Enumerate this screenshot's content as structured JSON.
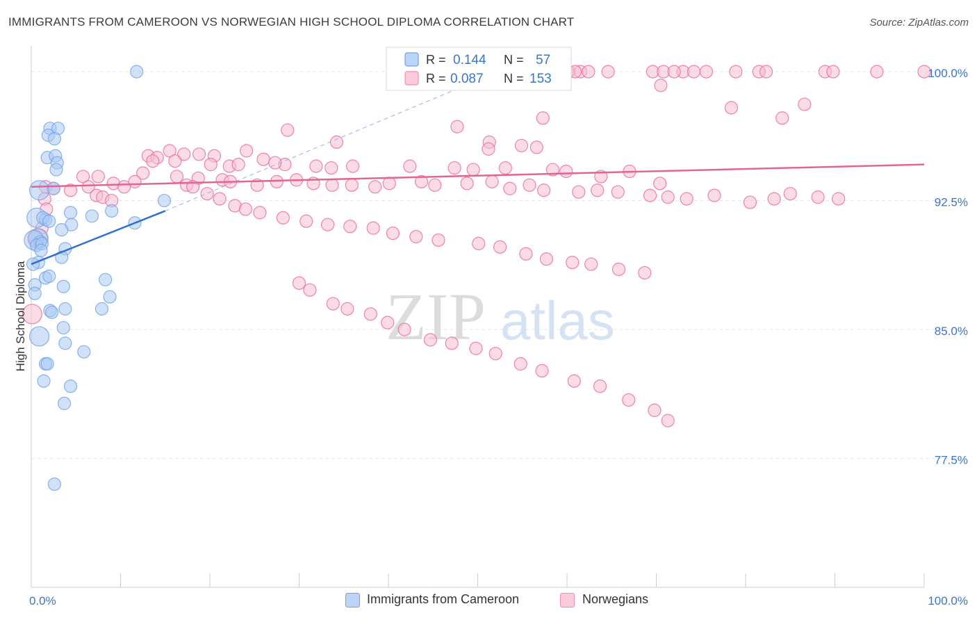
{
  "title": "IMMIGRANTS FROM CAMEROON VS NORWEGIAN HIGH SCHOOL DIPLOMA CORRELATION CHART",
  "source": "Source: ZipAtlas.com",
  "watermark": {
    "zip": "ZIP",
    "atlas": "atlas"
  },
  "stats_box": [
    {
      "r_label": "R = ",
      "r_value": "0.144",
      "n_label": "N = ",
      "n_value": "57",
      "color": "#6ea2e8"
    },
    {
      "r_label": "R = ",
      "r_value": "0.087",
      "n_label": "N = ",
      "n_value": "153",
      "color": "#f08cb0"
    }
  ],
  "chart_data": {
    "type": "scatter",
    "title": "IMMIGRANTS FROM CAMEROON VS NORWEGIAN HIGH SCHOOL DIPLOMA CORRELATION CHART",
    "xlabel": "",
    "ylabel": "High School Diploma",
    "xlim": [
      0,
      100
    ],
    "ylim": [
      70,
      101.5
    ],
    "x_tick_labels": [
      "0.0%",
      "100.0%"
    ],
    "y_ticks": [
      77.5,
      85.0,
      92.5,
      100.0
    ],
    "y_tick_labels": [
      "77.5%",
      "85.0%",
      "92.5%",
      "100.0%"
    ],
    "grid": true,
    "legend_position": "bottom",
    "series": [
      {
        "name": "Immigrants from Cameroon",
        "color": "#6ea2e8",
        "fill": "#a9c8f2",
        "trend": {
          "x": [
            0,
            15
          ],
          "y": [
            88.8,
            91.9
          ],
          "dashed_to": {
            "x": 50,
            "y": 99.5
          }
        },
        "points": [
          [
            11.8,
            100
          ],
          [
            2.1,
            96.7
          ],
          [
            3.0,
            96.7
          ],
          [
            1.9,
            96.3
          ],
          [
            2.6,
            96.1
          ],
          [
            1.8,
            95.0
          ],
          [
            2.7,
            95.1
          ],
          [
            2.9,
            94.7
          ],
          [
            2.8,
            94.3
          ],
          [
            0.9,
            93.1
          ],
          [
            2.5,
            93.2
          ],
          [
            14.9,
            92.5
          ],
          [
            4.4,
            91.8
          ],
          [
            6.8,
            91.6
          ],
          [
            9.0,
            91.9
          ],
          [
            0.6,
            91.5
          ],
          [
            1.6,
            91.4
          ],
          [
            1.3,
            91.5
          ],
          [
            2.0,
            91.3
          ],
          [
            11.6,
            91.2
          ],
          [
            4.5,
            91.1
          ],
          [
            3.4,
            90.8
          ],
          [
            0.8,
            90.3
          ],
          [
            0.3,
            90.2
          ],
          [
            1.0,
            90.1
          ],
          [
            0.6,
            89.9
          ],
          [
            1.2,
            90.0
          ],
          [
            3.8,
            89.7
          ],
          [
            1.1,
            89.6
          ],
          [
            3.4,
            89.2
          ],
          [
            0.8,
            88.9
          ],
          [
            0.2,
            88.8
          ],
          [
            1.6,
            88.0
          ],
          [
            8.3,
            87.9
          ],
          [
            2.0,
            88.1
          ],
          [
            3.6,
            87.5
          ],
          [
            0.4,
            87.6
          ],
          [
            0.4,
            87.1
          ],
          [
            8.8,
            86.9
          ],
          [
            3.8,
            86.2
          ],
          [
            7.9,
            86.2
          ],
          [
            2.1,
            86.1
          ],
          [
            2.3,
            86.0
          ],
          [
            3.6,
            85.1
          ],
          [
            0.9,
            84.6
          ],
          [
            3.8,
            84.2
          ],
          [
            5.9,
            83.7
          ],
          [
            1.6,
            83.0
          ],
          [
            1.8,
            83.0
          ],
          [
            1.4,
            82.0
          ],
          [
            4.4,
            81.7
          ],
          [
            3.7,
            80.7
          ],
          [
            2.6,
            76.0
          ]
        ]
      },
      {
        "name": "Norwegians",
        "color": "#e8679a",
        "fill": "#f7bdd1",
        "trend": {
          "x": [
            0,
            100
          ],
          "y": [
            93.3,
            94.6
          ]
        },
        "points": [
          [
            61.5,
            100
          ],
          [
            60.0,
            100
          ],
          [
            60.2,
            100
          ],
          [
            64.6,
            100
          ],
          [
            60.9,
            100
          ],
          [
            62.4,
            100
          ],
          [
            69.6,
            100
          ],
          [
            70.8,
            100
          ],
          [
            73.0,
            100
          ],
          [
            72.0,
            100
          ],
          [
            74.2,
            100
          ],
          [
            75.6,
            100
          ],
          [
            78.9,
            100
          ],
          [
            81.5,
            100
          ],
          [
            82.3,
            100
          ],
          [
            88.9,
            100
          ],
          [
            89.8,
            100
          ],
          [
            94.7,
            100
          ],
          [
            100,
            100
          ],
          [
            70.5,
            99.2
          ],
          [
            86.6,
            98.1
          ],
          [
            78.4,
            97.9
          ],
          [
            84.1,
            97.3
          ],
          [
            57.3,
            97.3
          ],
          [
            47.7,
            96.8
          ],
          [
            28.7,
            96.6
          ],
          [
            51.3,
            95.9
          ],
          [
            34.2,
            95.9
          ],
          [
            54.9,
            95.7
          ],
          [
            56.6,
            95.6
          ],
          [
            51.2,
            95.5
          ],
          [
            24.1,
            95.4
          ],
          [
            13.1,
            95.1
          ],
          [
            15.5,
            95.4
          ],
          [
            17.1,
            95.2
          ],
          [
            18.8,
            95.2
          ],
          [
            20.5,
            95.1
          ],
          [
            14.1,
            95.0
          ],
          [
            16.1,
            94.8
          ],
          [
            20.1,
            94.6
          ],
          [
            26.0,
            94.9
          ],
          [
            28.4,
            94.6
          ],
          [
            13.6,
            94.8
          ],
          [
            22.2,
            94.5
          ],
          [
            23.2,
            94.6
          ],
          [
            27.3,
            94.7
          ],
          [
            31.9,
            94.5
          ],
          [
            33.6,
            94.4
          ],
          [
            36.0,
            94.5
          ],
          [
            42.4,
            94.5
          ],
          [
            47.4,
            94.4
          ],
          [
            49.5,
            94.3
          ],
          [
            53.1,
            94.4
          ],
          [
            59.9,
            94.2
          ],
          [
            58.4,
            94.3
          ],
          [
            63.8,
            93.9
          ],
          [
            67.0,
            94.2
          ],
          [
            70.4,
            93.5
          ],
          [
            5.8,
            93.9
          ],
          [
            7.5,
            93.9
          ],
          [
            12.5,
            94.1
          ],
          [
            16.3,
            93.9
          ],
          [
            18.7,
            93.8
          ],
          [
            21.4,
            93.7
          ],
          [
            22.3,
            93.6
          ],
          [
            25.3,
            93.4
          ],
          [
            27.5,
            93.6
          ],
          [
            29.7,
            93.7
          ],
          [
            31.6,
            93.5
          ],
          [
            33.7,
            93.4
          ],
          [
            35.9,
            93.4
          ],
          [
            38.5,
            93.3
          ],
          [
            40.1,
            93.5
          ],
          [
            43.7,
            93.6
          ],
          [
            45.2,
            93.4
          ],
          [
            48.8,
            93.5
          ],
          [
            51.6,
            93.6
          ],
          [
            53.6,
            93.2
          ],
          [
            55.8,
            93.4
          ],
          [
            57.4,
            93.1
          ],
          [
            61.3,
            93.0
          ],
          [
            63.4,
            93.1
          ],
          [
            65.7,
            93.0
          ],
          [
            69.3,
            92.8
          ],
          [
            71.3,
            92.7
          ],
          [
            73.4,
            92.6
          ],
          [
            76.5,
            92.8
          ],
          [
            80.5,
            92.4
          ],
          [
            83.2,
            92.6
          ],
          [
            85.0,
            92.9
          ],
          [
            88.1,
            92.7
          ],
          [
            90.4,
            92.6
          ],
          [
            4.4,
            93.1
          ],
          [
            6.4,
            93.3
          ],
          [
            9.2,
            93.5
          ],
          [
            10.4,
            93.3
          ],
          [
            11.6,
            93.6
          ],
          [
            1.6,
            93.3
          ],
          [
            1.5,
            92.6
          ],
          [
            2.5,
            93.2
          ],
          [
            1.7,
            92.0
          ],
          [
            1.2,
            90.9
          ],
          [
            0.7,
            90.3
          ],
          [
            7.3,
            92.8
          ],
          [
            8.0,
            92.7
          ],
          [
            9.0,
            92.5
          ],
          [
            17.4,
            93.4
          ],
          [
            18.1,
            93.3
          ],
          [
            19.7,
            92.9
          ],
          [
            21.1,
            92.6
          ],
          [
            22.8,
            92.2
          ],
          [
            24.0,
            92.0
          ],
          [
            25.6,
            91.8
          ],
          [
            28.2,
            91.5
          ],
          [
            30.8,
            91.3
          ],
          [
            33.2,
            91.1
          ],
          [
            35.7,
            91.0
          ],
          [
            38.3,
            90.9
          ],
          [
            40.5,
            90.6
          ],
          [
            43.1,
            90.4
          ],
          [
            45.6,
            90.2
          ],
          [
            50.1,
            90.0
          ],
          [
            52.5,
            89.8
          ],
          [
            55.4,
            89.4
          ],
          [
            57.7,
            89.1
          ],
          [
            60.6,
            88.9
          ],
          [
            62.7,
            88.8
          ],
          [
            65.8,
            88.5
          ],
          [
            68.7,
            88.3
          ],
          [
            30.0,
            87.7
          ],
          [
            31.2,
            87.3
          ],
          [
            33.8,
            86.5
          ],
          [
            35.4,
            86.2
          ],
          [
            38.0,
            85.9
          ],
          [
            39.9,
            85.4
          ],
          [
            41.8,
            85.0
          ],
          [
            44.7,
            84.4
          ],
          [
            47.1,
            84.2
          ],
          [
            49.8,
            83.9
          ],
          [
            52.0,
            83.6
          ],
          [
            54.8,
            83.0
          ],
          [
            57.2,
            82.6
          ],
          [
            60.8,
            82.0
          ],
          [
            63.7,
            81.7
          ],
          [
            66.9,
            80.9
          ],
          [
            69.8,
            80.3
          ],
          [
            71.3,
            79.7
          ],
          [
            0.1,
            85.9
          ]
        ]
      }
    ]
  }
}
